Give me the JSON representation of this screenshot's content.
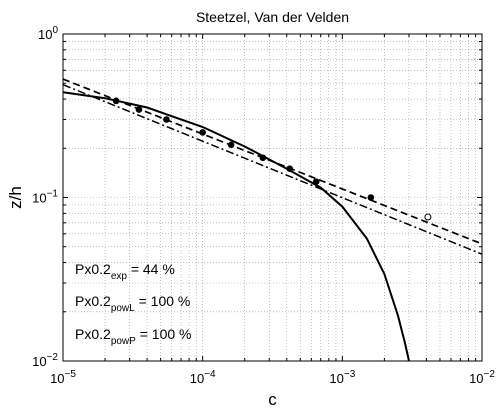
{
  "chart_data": {
    "type": "scatter",
    "title": "Steetzel, Van der Velden",
    "xlabel": "c",
    "ylabel": "z/h",
    "xscale": "log",
    "yscale": "log",
    "xlim": [
      1e-05,
      0.01
    ],
    "ylim": [
      0.01,
      1
    ],
    "grid": true,
    "x_ticks": [
      {
        "value": 1e-05,
        "base": "10",
        "exp": "−5"
      },
      {
        "value": 0.0001,
        "base": "10",
        "exp": "−4"
      },
      {
        "value": 0.001,
        "base": "10",
        "exp": "−3"
      },
      {
        "value": 0.01,
        "base": "10",
        "exp": "−2"
      }
    ],
    "y_ticks": [
      {
        "value": 0.01,
        "base": "10",
        "exp": "−2"
      },
      {
        "value": 0.1,
        "base": "10",
        "exp": "−1"
      },
      {
        "value": 1,
        "base": "10",
        "exp": "0"
      }
    ],
    "points_filled": [
      {
        "x": 2.4e-05,
        "y": 0.39
      },
      {
        "x": 3.5e-05,
        "y": 0.345
      },
      {
        "x": 5.5e-05,
        "y": 0.3
      },
      {
        "x": 0.0001,
        "y": 0.25
      },
      {
        "x": 0.00016,
        "y": 0.21
      },
      {
        "x": 0.00027,
        "y": 0.175
      },
      {
        "x": 0.00042,
        "y": 0.15
      },
      {
        "x": 0.00065,
        "y": 0.125
      },
      {
        "x": 0.0016,
        "y": 0.1
      }
    ],
    "points_open": [
      {
        "x": 0.0041,
        "y": 0.076
      }
    ],
    "curves": [
      {
        "style": "solid",
        "points": [
          [
            1e-05,
            0.44
          ],
          [
            2e-05,
            0.405
          ],
          [
            4e-05,
            0.355
          ],
          [
            0.0001,
            0.27
          ],
          [
            0.0002,
            0.205
          ],
          [
            0.0004,
            0.15
          ],
          [
            0.0007,
            0.115
          ],
          [
            0.001,
            0.088
          ],
          [
            0.0015,
            0.056
          ],
          [
            0.002,
            0.034
          ],
          [
            0.0025,
            0.019
          ],
          [
            0.0028,
            0.013
          ],
          [
            0.003,
            0.01
          ]
        ]
      },
      {
        "style": "dashed",
        "points": [
          [
            1e-05,
            0.53
          ],
          [
            0.01,
            0.052
          ]
        ]
      },
      {
        "style": "dashdot",
        "points": [
          [
            1e-05,
            0.49
          ],
          [
            0.01,
            0.045
          ]
        ]
      }
    ],
    "annotations": [
      {
        "base": "Px0.2",
        "sub": "exp",
        "value": " = 44 %"
      },
      {
        "base": "Px0.2",
        "sub": "powL",
        "value": " = 100 %"
      },
      {
        "base": "Px0.2",
        "sub": "powP",
        "value": " = 100 %"
      }
    ]
  }
}
